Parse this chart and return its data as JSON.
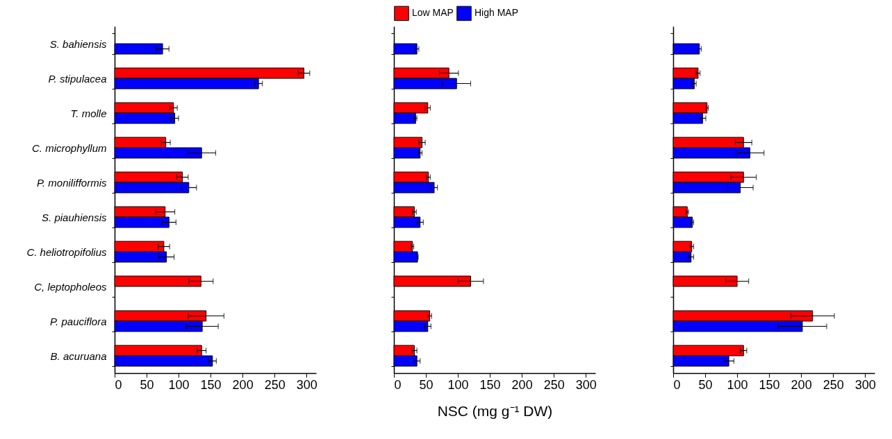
{
  "chart_data": [
    {
      "type": "bar",
      "orientation": "horizontal",
      "categories": [
        "S. bahiensis",
        "P. stipulacea",
        "T. molle",
        "C. microphyllum",
        "P. monilifformis",
        "S. piauhiensis",
        "C. heliotropifolius",
        "C, leptopholeos",
        "P. pauciflora",
        "B. acuruana"
      ],
      "xlim": [
        0,
        315
      ],
      "xticks": [
        0,
        50,
        100,
        150,
        200,
        250,
        300
      ],
      "series": [
        {
          "color": "#ff0000",
          "values": [
            null,
            296,
            92,
            80,
            106,
            79,
            77,
            135,
            143,
            136
          ],
          "errors": [
            null,
            9,
            6,
            7,
            9,
            15,
            9,
            19,
            28,
            7
          ]
        },
        {
          "color": "#0000ff",
          "values": [
            75,
            225,
            94,
            136,
            116,
            85,
            81,
            null,
            137,
            153
          ],
          "errors": [
            10,
            6,
            6,
            22,
            12,
            11,
            12,
            null,
            25,
            6
          ]
        }
      ]
    },
    {
      "type": "bar",
      "orientation": "horizontal",
      "categories": [
        null,
        null,
        null,
        null,
        null,
        null,
        null,
        null,
        null,
        null
      ],
      "xlim": [
        0,
        315
      ],
      "xticks": [
        0,
        50,
        100,
        150,
        200,
        250,
        300
      ],
      "xlabel": "NSC (mg g⁻¹ DW)",
      "legend": "top",
      "tick_labels": "x",
      "series": [
        {
          "name": "Low MAP",
          "color": "#ff0000",
          "values": [
            null,
            86,
            53,
            44,
            54,
            32,
            29,
            120,
            56,
            32
          ],
          "errors": [
            null,
            15,
            4,
            5,
            3,
            3,
            2,
            20,
            3,
            4
          ]
        },
        {
          "name": "High MAP",
          "color": "#0000ff",
          "values": [
            36,
            98,
            34,
            41,
            63,
            41,
            37,
            null,
            53,
            36
          ],
          "errors": [
            3,
            22,
            2,
            3,
            5,
            5,
            1,
            null,
            5,
            5
          ]
        }
      ]
    },
    {
      "type": "bar",
      "orientation": "horizontal",
      "categories": [
        null,
        null,
        null,
        null,
        null,
        null,
        null,
        null,
        null,
        null
      ],
      "xlim": [
        0,
        315
      ],
      "xticks": [
        0,
        50,
        100,
        150,
        200,
        250,
        300
      ],
      "tick_labels": "x",
      "series": [
        {
          "color": "#ff0000",
          "values": [
            null,
            39,
            53,
            110,
            110,
            22,
            29,
            100,
            218,
            110
          ],
          "errors": [
            null,
            3,
            2,
            13,
            20,
            2,
            3,
            18,
            34,
            5
          ]
        },
        {
          "color": "#0000ff",
          "values": [
            41,
            33,
            46,
            120,
            105,
            30,
            28,
            null,
            202,
            87
          ],
          "errors": [
            3,
            3,
            5,
            22,
            20,
            2,
            4,
            null,
            38,
            8
          ]
        }
      ]
    }
  ]
}
